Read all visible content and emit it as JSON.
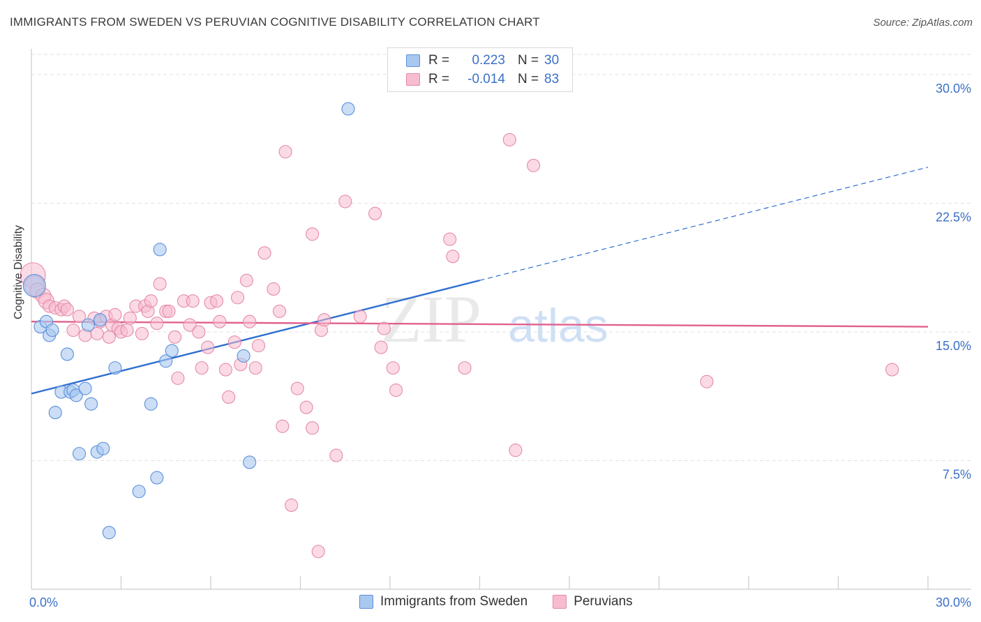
{
  "title": "IMMIGRANTS FROM SWEDEN VS PERUVIAN COGNITIVE DISABILITY CORRELATION CHART",
  "source": "Source: ZipAtlas.com",
  "watermark": {
    "zip": "ZIP",
    "atlas": "atlas"
  },
  "legend": {
    "rows": [
      {
        "r_label": "R =",
        "r_value": "0.223",
        "n_label": "N =",
        "n_value": "30"
      },
      {
        "r_label": "R =",
        "r_value": "-0.014",
        "n_label": "N =",
        "n_value": "83"
      }
    ]
  },
  "bottom_legend": {
    "sweden": "Immigrants from Sweden",
    "peruvians": "Peruvians"
  },
  "colors": {
    "sweden_fill": "#a9c8f0",
    "sweden_stroke": "#5b8fd9",
    "sweden_line": "#2f6fcf",
    "peru_fill": "#f7bcd0",
    "peru_stroke": "#e48aa9",
    "peru_line": "#e0618d",
    "tick_text": "#3b6fc7",
    "grid": "#e2e2e2"
  },
  "chart_data": {
    "type": "scatter",
    "title": "IMMIGRANTS FROM SWEDEN VS PERUVIAN COGNITIVE DISABILITY CORRELATION CHART",
    "xlabel": "",
    "ylabel": "Cognitive Disability",
    "xlim": [
      0,
      30
    ],
    "ylim": [
      0,
      31.5
    ],
    "x_tick_labels": [
      "0.0%",
      "30.0%"
    ],
    "y_ticks": [
      7.5,
      15.0,
      22.5,
      30.0
    ],
    "y_tick_labels": [
      "7.5%",
      "15.0%",
      "22.5%",
      "30.0%"
    ],
    "series": [
      {
        "name": "Immigrants from Sweden",
        "trend": {
          "x0": 0,
          "y0": 11.4,
          "x1": 15.0,
          "y1": 18.0,
          "dash_x1": 30.0,
          "dash_y1": 24.6
        },
        "points": [
          [
            0.1,
            17.7,
            16
          ],
          [
            0.3,
            15.3,
            9
          ],
          [
            0.5,
            15.6,
            9
          ],
          [
            0.6,
            14.8,
            9
          ],
          [
            0.7,
            15.1,
            9
          ],
          [
            0.8,
            10.3,
            9
          ],
          [
            1.0,
            11.5,
            9
          ],
          [
            1.2,
            13.7,
            9
          ],
          [
            1.3,
            11.5,
            9
          ],
          [
            1.4,
            11.6,
            9
          ],
          [
            1.5,
            11.3,
            9
          ],
          [
            1.6,
            7.9,
            9
          ],
          [
            1.8,
            11.7,
            9
          ],
          [
            1.9,
            15.4,
            9
          ],
          [
            2.0,
            10.8,
            9
          ],
          [
            2.2,
            8.0,
            9
          ],
          [
            2.4,
            8.2,
            9
          ],
          [
            2.3,
            15.7,
            9
          ],
          [
            2.8,
            12.9,
            9
          ],
          [
            3.6,
            5.7,
            9
          ],
          [
            2.6,
            3.3,
            9
          ],
          [
            4.0,
            10.8,
            9
          ],
          [
            4.2,
            6.5,
            9
          ],
          [
            4.3,
            19.8,
            9
          ],
          [
            4.5,
            13.3,
            9
          ],
          [
            4.7,
            13.9,
            9
          ],
          [
            7.1,
            13.6,
            9
          ],
          [
            7.3,
            7.4,
            9
          ],
          [
            10.6,
            28.0,
            9
          ]
        ]
      },
      {
        "name": "Peruvians",
        "trend": {
          "x0": 0,
          "y0": 15.6,
          "x1": 30.0,
          "y1": 15.3
        },
        "points": [
          [
            0.05,
            18.3,
            18
          ],
          [
            0.1,
            17.7,
            14
          ],
          [
            0.2,
            17.4,
            11
          ],
          [
            0.4,
            17.1,
            11
          ],
          [
            0.5,
            16.8,
            11
          ],
          [
            0.6,
            16.5,
            9
          ],
          [
            0.8,
            16.4,
            9
          ],
          [
            1.0,
            16.3,
            9
          ],
          [
            1.1,
            16.5,
            9
          ],
          [
            1.2,
            16.3,
            9
          ],
          [
            1.4,
            15.1,
            9
          ],
          [
            1.6,
            15.9,
            9
          ],
          [
            1.8,
            14.8,
            9
          ],
          [
            2.1,
            15.8,
            9
          ],
          [
            2.2,
            14.9,
            9
          ],
          [
            2.3,
            15.6,
            9
          ],
          [
            2.5,
            15.9,
            9
          ],
          [
            2.6,
            14.7,
            9
          ],
          [
            2.7,
            15.4,
            9
          ],
          [
            2.8,
            16.0,
            9
          ],
          [
            2.9,
            15.2,
            9
          ],
          [
            3.0,
            15.0,
            9
          ],
          [
            3.2,
            15.1,
            9
          ],
          [
            3.3,
            15.8,
            9
          ],
          [
            3.5,
            16.5,
            9
          ],
          [
            3.7,
            14.9,
            9
          ],
          [
            3.8,
            16.5,
            9
          ],
          [
            3.9,
            16.2,
            9
          ],
          [
            4.0,
            16.8,
            9
          ],
          [
            4.2,
            15.5,
            9
          ],
          [
            4.3,
            17.8,
            9
          ],
          [
            4.5,
            16.2,
            9
          ],
          [
            4.6,
            16.2,
            9
          ],
          [
            4.8,
            14.7,
            9
          ],
          [
            4.9,
            12.3,
            9
          ],
          [
            5.1,
            16.8,
            9
          ],
          [
            5.3,
            15.4,
            9
          ],
          [
            5.4,
            16.8,
            9
          ],
          [
            5.6,
            15.0,
            9
          ],
          [
            5.7,
            12.9,
            9
          ],
          [
            5.9,
            14.1,
            9
          ],
          [
            6.0,
            16.7,
            9
          ],
          [
            6.2,
            16.8,
            9
          ],
          [
            6.3,
            15.6,
            9
          ],
          [
            6.5,
            12.8,
            9
          ],
          [
            6.6,
            11.2,
            9
          ],
          [
            6.8,
            14.4,
            9
          ],
          [
            6.9,
            17.0,
            9
          ],
          [
            7.0,
            13.1,
            9
          ],
          [
            7.2,
            18.0,
            9
          ],
          [
            7.3,
            15.6,
            9
          ],
          [
            7.5,
            12.9,
            9
          ],
          [
            7.6,
            14.2,
            9
          ],
          [
            7.8,
            19.6,
            9
          ],
          [
            8.1,
            17.5,
            9
          ],
          [
            8.3,
            16.2,
            9
          ],
          [
            8.4,
            9.5,
            9
          ],
          [
            8.5,
            25.5,
            9
          ],
          [
            8.7,
            4.9,
            9
          ],
          [
            8.9,
            11.7,
            9
          ],
          [
            9.2,
            10.6,
            9
          ],
          [
            9.4,
            9.4,
            9
          ],
          [
            9.4,
            20.7,
            9
          ],
          [
            9.6,
            2.2,
            9
          ],
          [
            9.7,
            15.1,
            9
          ],
          [
            9.8,
            15.7,
            9
          ],
          [
            10.2,
            7.8,
            9
          ],
          [
            10.5,
            22.6,
            9
          ],
          [
            11.0,
            15.9,
            9
          ],
          [
            11.5,
            21.9,
            9
          ],
          [
            11.7,
            14.1,
            9
          ],
          [
            11.8,
            15.2,
            9
          ],
          [
            12.1,
            12.9,
            9
          ],
          [
            12.2,
            11.6,
            9
          ],
          [
            14.0,
            20.4,
            9
          ],
          [
            14.1,
            19.4,
            9
          ],
          [
            14.5,
            12.9,
            9
          ],
          [
            16.0,
            26.2,
            9
          ],
          [
            16.2,
            8.1,
            9
          ],
          [
            16.8,
            24.7,
            9
          ],
          [
            22.6,
            12.1,
            9
          ],
          [
            28.8,
            12.8,
            9
          ]
        ]
      }
    ]
  }
}
